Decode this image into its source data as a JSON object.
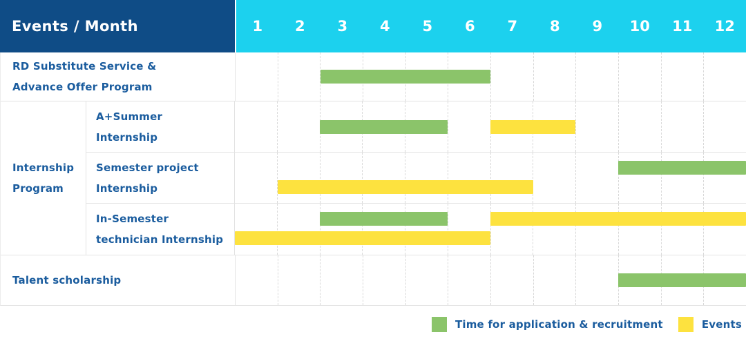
{
  "header": {
    "label": "Events / Month",
    "months": [
      "1",
      "2",
      "3",
      "4",
      "5",
      "6",
      "7",
      "8",
      "9",
      "10",
      "11",
      "12"
    ]
  },
  "chart_data": {
    "type": "gantt",
    "x_unit": "month",
    "x_range": [
      1,
      12
    ],
    "group_label": "Internship\nProgram",
    "rows": [
      {
        "label": "RD Substitute Service &\nAdvance Offer Program",
        "group": null,
        "bars": [
          {
            "type": "recruitment",
            "start": 3,
            "end": 6,
            "lane": "single"
          }
        ]
      },
      {
        "label": "A+Summer\nInternship",
        "group": "Internship Program",
        "bars": [
          {
            "type": "recruitment",
            "start": 3,
            "end": 5,
            "lane": "single"
          },
          {
            "type": "events",
            "start": 7,
            "end": 8,
            "lane": "single"
          }
        ]
      },
      {
        "label": "Semester project\nInternship",
        "group": "Internship Program",
        "bars": [
          {
            "type": "recruitment",
            "start": 10,
            "end": 12,
            "lane": "top"
          },
          {
            "type": "events",
            "start": 2,
            "end": 7,
            "lane": "bottom"
          }
        ]
      },
      {
        "label": "In-Semester\ntechnician Internship",
        "group": "Internship Program",
        "bars": [
          {
            "type": "recruitment",
            "start": 3,
            "end": 5,
            "lane": "top"
          },
          {
            "type": "events",
            "start": 7,
            "end": 12,
            "lane": "top"
          },
          {
            "type": "events",
            "start": 1,
            "end": 6,
            "lane": "bottom"
          }
        ]
      },
      {
        "label": "Talent scholarship",
        "group": null,
        "bars": [
          {
            "type": "recruitment",
            "start": 10,
            "end": 12,
            "lane": "single"
          }
        ]
      }
    ]
  },
  "legend": {
    "items": [
      {
        "key": "recruitment",
        "label": "Time for application & recruitment"
      },
      {
        "key": "events",
        "label": "Events"
      }
    ]
  },
  "colors": {
    "header_bg": "#0F4C86",
    "months_bg": "#1CD1EE",
    "label_text": "#1A5C9E",
    "recruitment": "#8BC46A",
    "events": "#FDE23F",
    "grid_solid": "#E3E3E3",
    "grid_dashed": "#D8D8D8"
  }
}
